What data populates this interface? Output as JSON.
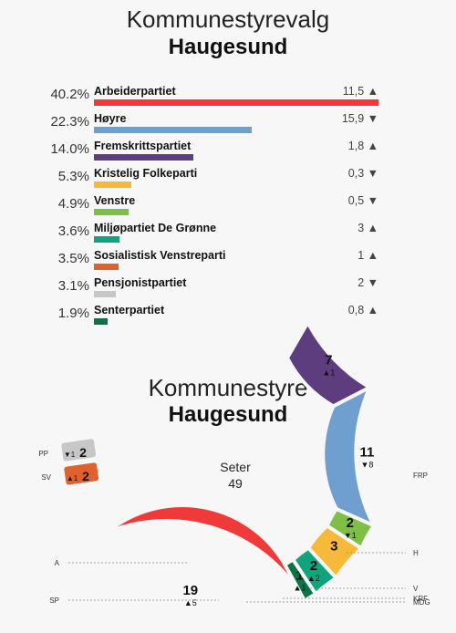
{
  "election": {
    "title_line1": "Kommunestyrevalg",
    "title_line2": "Haugesund"
  },
  "chart_data": [
    {
      "type": "bar",
      "orientation": "horizontal",
      "title": "Kommunestyrevalg Haugesund",
      "categories": [
        "Arbeiderpartiet",
        "Høyre",
        "Fremskrittspartiet",
        "Kristelig Folkeparti",
        "Venstre",
        "Miljøpartiet De Grønne",
        "Sosialistisk Venstreparti",
        "Pensjonistpartiet",
        "Senterpartiet"
      ],
      "values": [
        40.2,
        22.3,
        14.0,
        5.3,
        4.9,
        3.6,
        3.5,
        3.1,
        1.9
      ],
      "value_labels": [
        "40.2%",
        "22.3%",
        "14.0%",
        "5.3%",
        "4.9%",
        "3.6%",
        "3.5%",
        "3.1%",
        "1.9%"
      ],
      "changes": [
        {
          "value": "11,5",
          "dir": "▲"
        },
        {
          "value": "15,9",
          "dir": "▼"
        },
        {
          "value": "1,8",
          "dir": "▲"
        },
        {
          "value": "0,3",
          "dir": "▼"
        },
        {
          "value": "0,5",
          "dir": "▼"
        },
        {
          "value": "3",
          "dir": "▲"
        },
        {
          "value": "1",
          "dir": "▲"
        },
        {
          "value": "2",
          "dir": "▼"
        },
        {
          "value": "0,8",
          "dir": "▲"
        }
      ],
      "colors": [
        "#f03a3a",
        "#6f9fcf",
        "#5e3d7e",
        "#f7b93a",
        "#7fbf45",
        "#10a37c",
        "#e0602e",
        "#c7c7c7",
        "#0a7444"
      ],
      "xlim": [
        0,
        40.2
      ]
    },
    {
      "type": "pie",
      "variant": "semicircle-parliament",
      "title": "Kommunestyre Haugesund",
      "center_label": "Seter",
      "total": "49",
      "parties": [
        {
          "abbr": "A",
          "seats": 19,
          "change": "▲5",
          "color": "#f03a3a"
        },
        {
          "abbr": "SP",
          "seats": 1,
          "change": "▲1",
          "color": "#0a7444"
        },
        {
          "abbr": "MDG",
          "seats": 2,
          "change": "▲2",
          "color": "#10a37c"
        },
        {
          "abbr": "KRF",
          "seats": 3,
          "change": "",
          "color": "#f7b93a"
        },
        {
          "abbr": "V",
          "seats": 2,
          "change": "▼1",
          "color": "#7fbf45"
        },
        {
          "abbr": "H",
          "seats": 11,
          "change": "▼8",
          "color": "#6f9fcf"
        },
        {
          "abbr": "FRP",
          "seats": 7,
          "change": "▲1",
          "color": "#5e3d7e"
        }
      ],
      "extra_parties": [
        {
          "abbr": "PP",
          "seats": 2,
          "change": "▼1",
          "color": "#c7c7c7"
        },
        {
          "abbr": "SV",
          "seats": 2,
          "change": "▲1",
          "color": "#e0602e"
        }
      ]
    }
  ],
  "council": {
    "title_line1": "Kommunestyre",
    "title_line2": "Haugesund"
  }
}
